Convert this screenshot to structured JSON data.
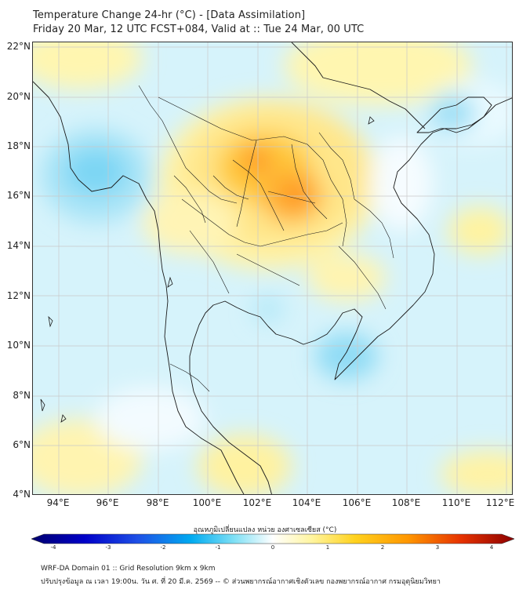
{
  "header": {
    "title": "Temperature Change 24-hr (°C) - [Data Assimilation]",
    "subtitle": "Friday 20 Mar, 12 UTC FCST+084, Valid at :: Tue 24 Mar, 00 UTC"
  },
  "axes": {
    "lat_labels": [
      "22°N",
      "20°N",
      "18°N",
      "16°N",
      "14°N",
      "12°N",
      "10°N",
      "8°N",
      "6°N",
      "4°N"
    ],
    "lon_labels": [
      "94°E",
      "96°E",
      "98°E",
      "100°E",
      "102°E",
      "104°E",
      "106°E",
      "108°E",
      "110°E",
      "112°E"
    ]
  },
  "colorbar": {
    "label": "อุณหภูมิเปลี่ยนแปลง หน่วย องศาเซลเซียส (°C)",
    "ticks": [
      "-4",
      "-3",
      "-2",
      "-1",
      "0",
      "1",
      "2",
      "3",
      "4"
    ],
    "colors": [
      "#00006e",
      "#0000c8",
      "#1e50e6",
      "#00aaf0",
      "#7fe0f5",
      "#ffffff",
      "#fff5a0",
      "#ffd21e",
      "#ff9600",
      "#e63200",
      "#8c0000"
    ]
  },
  "footer": {
    "line1": "WRF-DA Domain 01 :: Grid Resolution 9km x 9km",
    "line2": "ปรับปรุงข้อมูล ณ เวลา 19:00น. วัน ศ. ที่ 20 มี.ค. 2569 -- © ส่วนพยากรณ์อากาศเชิงตัวเลข กองพยากรณ์อากาศ กรมอุตุนิยมวิทยา"
  },
  "theme": {
    "land_outline": "#1a1a1a",
    "grid": "#c9c9c9",
    "ocean": "#d8f4fb"
  }
}
